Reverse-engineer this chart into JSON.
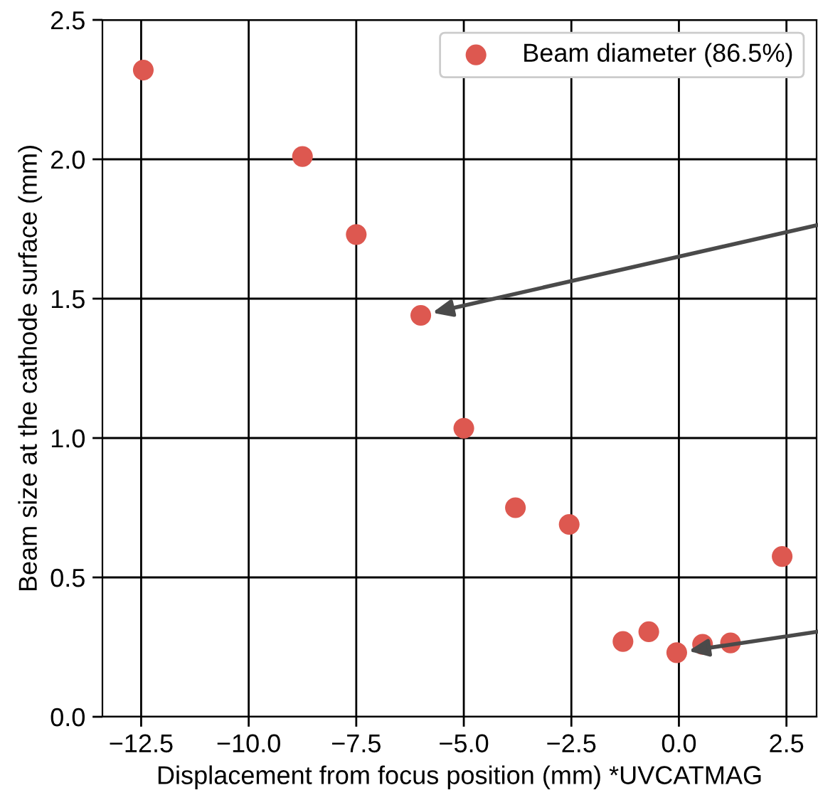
{
  "chart_data": {
    "type": "scatter",
    "xlabel": "Displacement from focus position (mm) *UVCATMAG",
    "ylabel": "Beam size at the cathode surface (mm)",
    "series": [
      {
        "name": "Beam diameter (86.5%)",
        "color": "#dd5850",
        "x": [
          -12.45,
          -8.75,
          -7.5,
          -6.0,
          -5.0,
          -3.8,
          -2.55,
          -1.3,
          -0.7,
          -0.05,
          0.55,
          1.2,
          2.4
        ],
        "values": [
          2.32,
          2.01,
          1.73,
          1.44,
          1.035,
          0.75,
          0.69,
          0.27,
          0.305,
          0.23,
          0.26,
          0.265,
          0.575
        ]
      }
    ],
    "xlim": [
      -13.4,
      3.2
    ],
    "xticks": [
      {
        "value": -12.5,
        "label": "−12.5"
      },
      {
        "value": -10,
        "label": "−10.0"
      },
      {
        "value": -7.5,
        "label": "−7.5"
      },
      {
        "value": -5,
        "label": "−5.0"
      },
      {
        "value": -2.5,
        "label": "−2.5"
      },
      {
        "value": 0,
        "label": "0.0"
      },
      {
        "value": 2.5,
        "label": "2.5"
      }
    ],
    "ylim": [
      0,
      2.5
    ],
    "yticks": [
      {
        "value": 0,
        "label": "0.0"
      },
      {
        "value": 0.5,
        "label": "0.5"
      },
      {
        "value": 1,
        "label": "1.0"
      },
      {
        "value": 1.5,
        "label": "1.5"
      },
      {
        "value": 2,
        "label": "2.0"
      },
      {
        "value": 2.5,
        "label": "2.5"
      }
    ],
    "grid": true,
    "legend": "top right",
    "marker": "circle"
  }
}
